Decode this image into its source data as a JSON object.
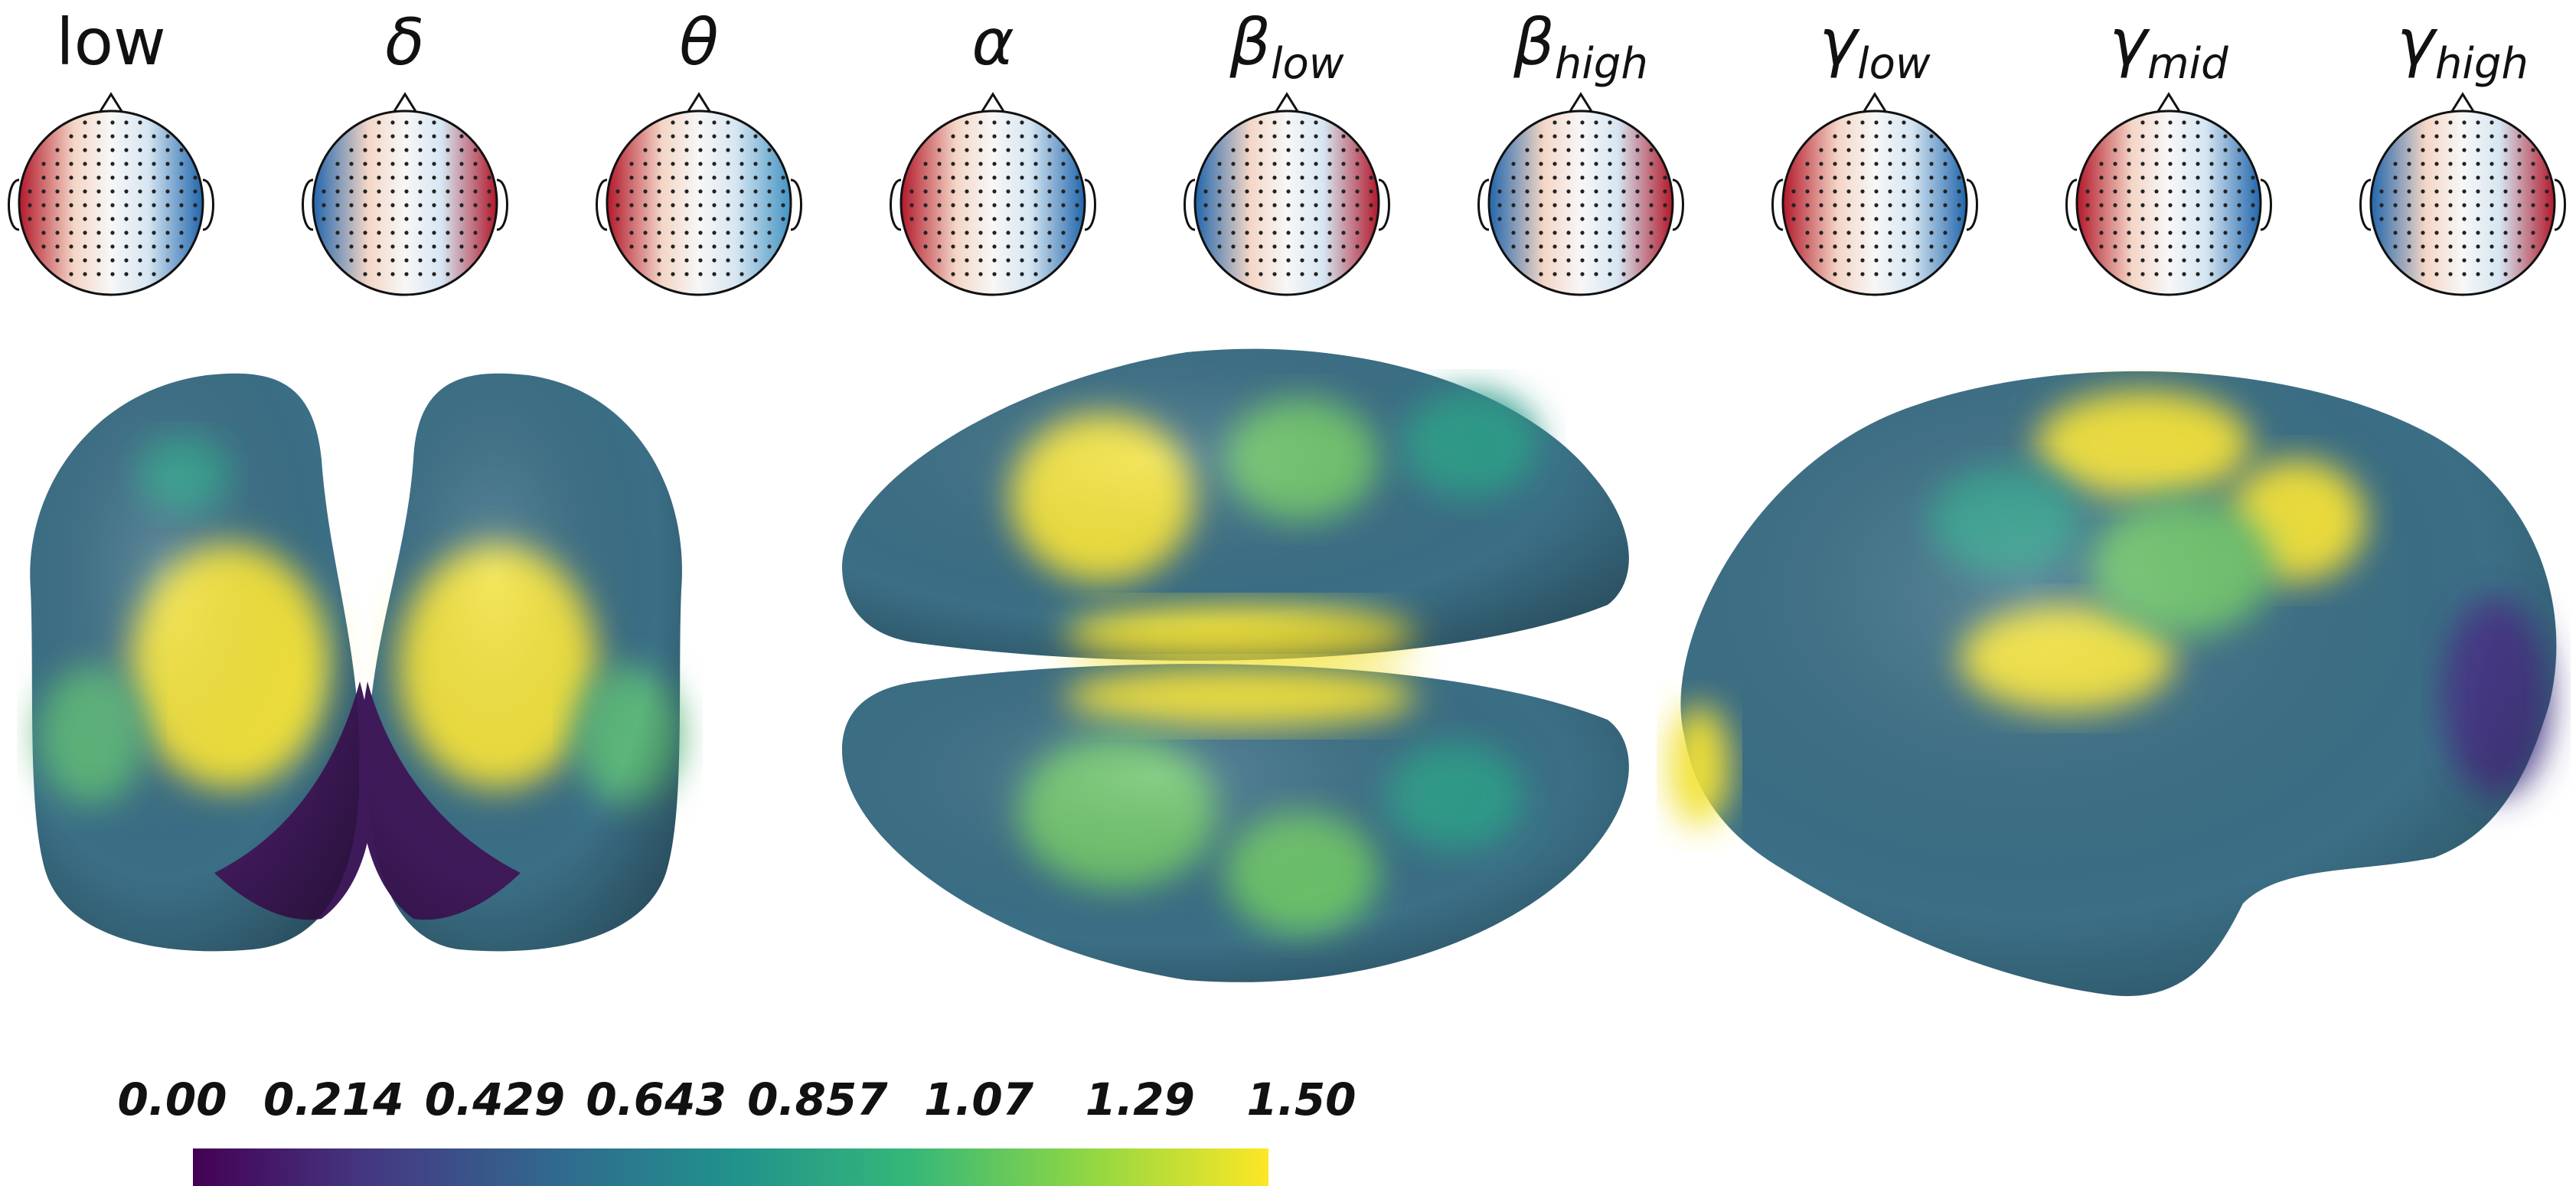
{
  "topomaps": [
    {
      "label": "low",
      "sub": "",
      "upright": true,
      "left_color": "#b2182b",
      "right_color": "#2166ac"
    },
    {
      "label": "δ",
      "sub": "",
      "upright": false,
      "left_color": "#2166ac",
      "right_color": "#b2182b"
    },
    {
      "label": "θ",
      "sub": "",
      "upright": false,
      "left_color": "#b2182b",
      "right_color": "#4393c3"
    },
    {
      "label": "α",
      "sub": "",
      "upright": false,
      "left_color": "#b2182b",
      "right_color": "#2166ac"
    },
    {
      "label": "β",
      "sub": "low",
      "upright": false,
      "left_color": "#2166ac",
      "right_color": "#b2182b"
    },
    {
      "label": "β",
      "sub": "high",
      "upright": false,
      "left_color": "#2166ac",
      "right_color": "#b2182b"
    },
    {
      "label": "γ",
      "sub": "low",
      "upright": false,
      "left_color": "#b2182b",
      "right_color": "#2166ac"
    },
    {
      "label": "γ",
      "sub": "mid",
      "upright": false,
      "left_color": "#b2182b",
      "right_color": "#2166ac"
    },
    {
      "label": "γ",
      "sub": "high",
      "upright": false,
      "left_color": "#2166ac",
      "right_color": "#b2182b"
    }
  ],
  "colorbar": {
    "ticks": [
      "0.00",
      "0.214",
      "0.429",
      "0.643",
      "0.857",
      "1.07",
      "1.29",
      "1.50"
    ],
    "colormap": [
      "#440154",
      "#443983",
      "#31688e",
      "#21918c",
      "#35b779",
      "#90d743",
      "#fde725"
    ]
  },
  "brain_colors": {
    "base": "#3b6f86",
    "mid": "#2f9c8a",
    "green": "#6cc36a",
    "yellow": "#f2e23a",
    "dark": "#3f1a5a"
  }
}
